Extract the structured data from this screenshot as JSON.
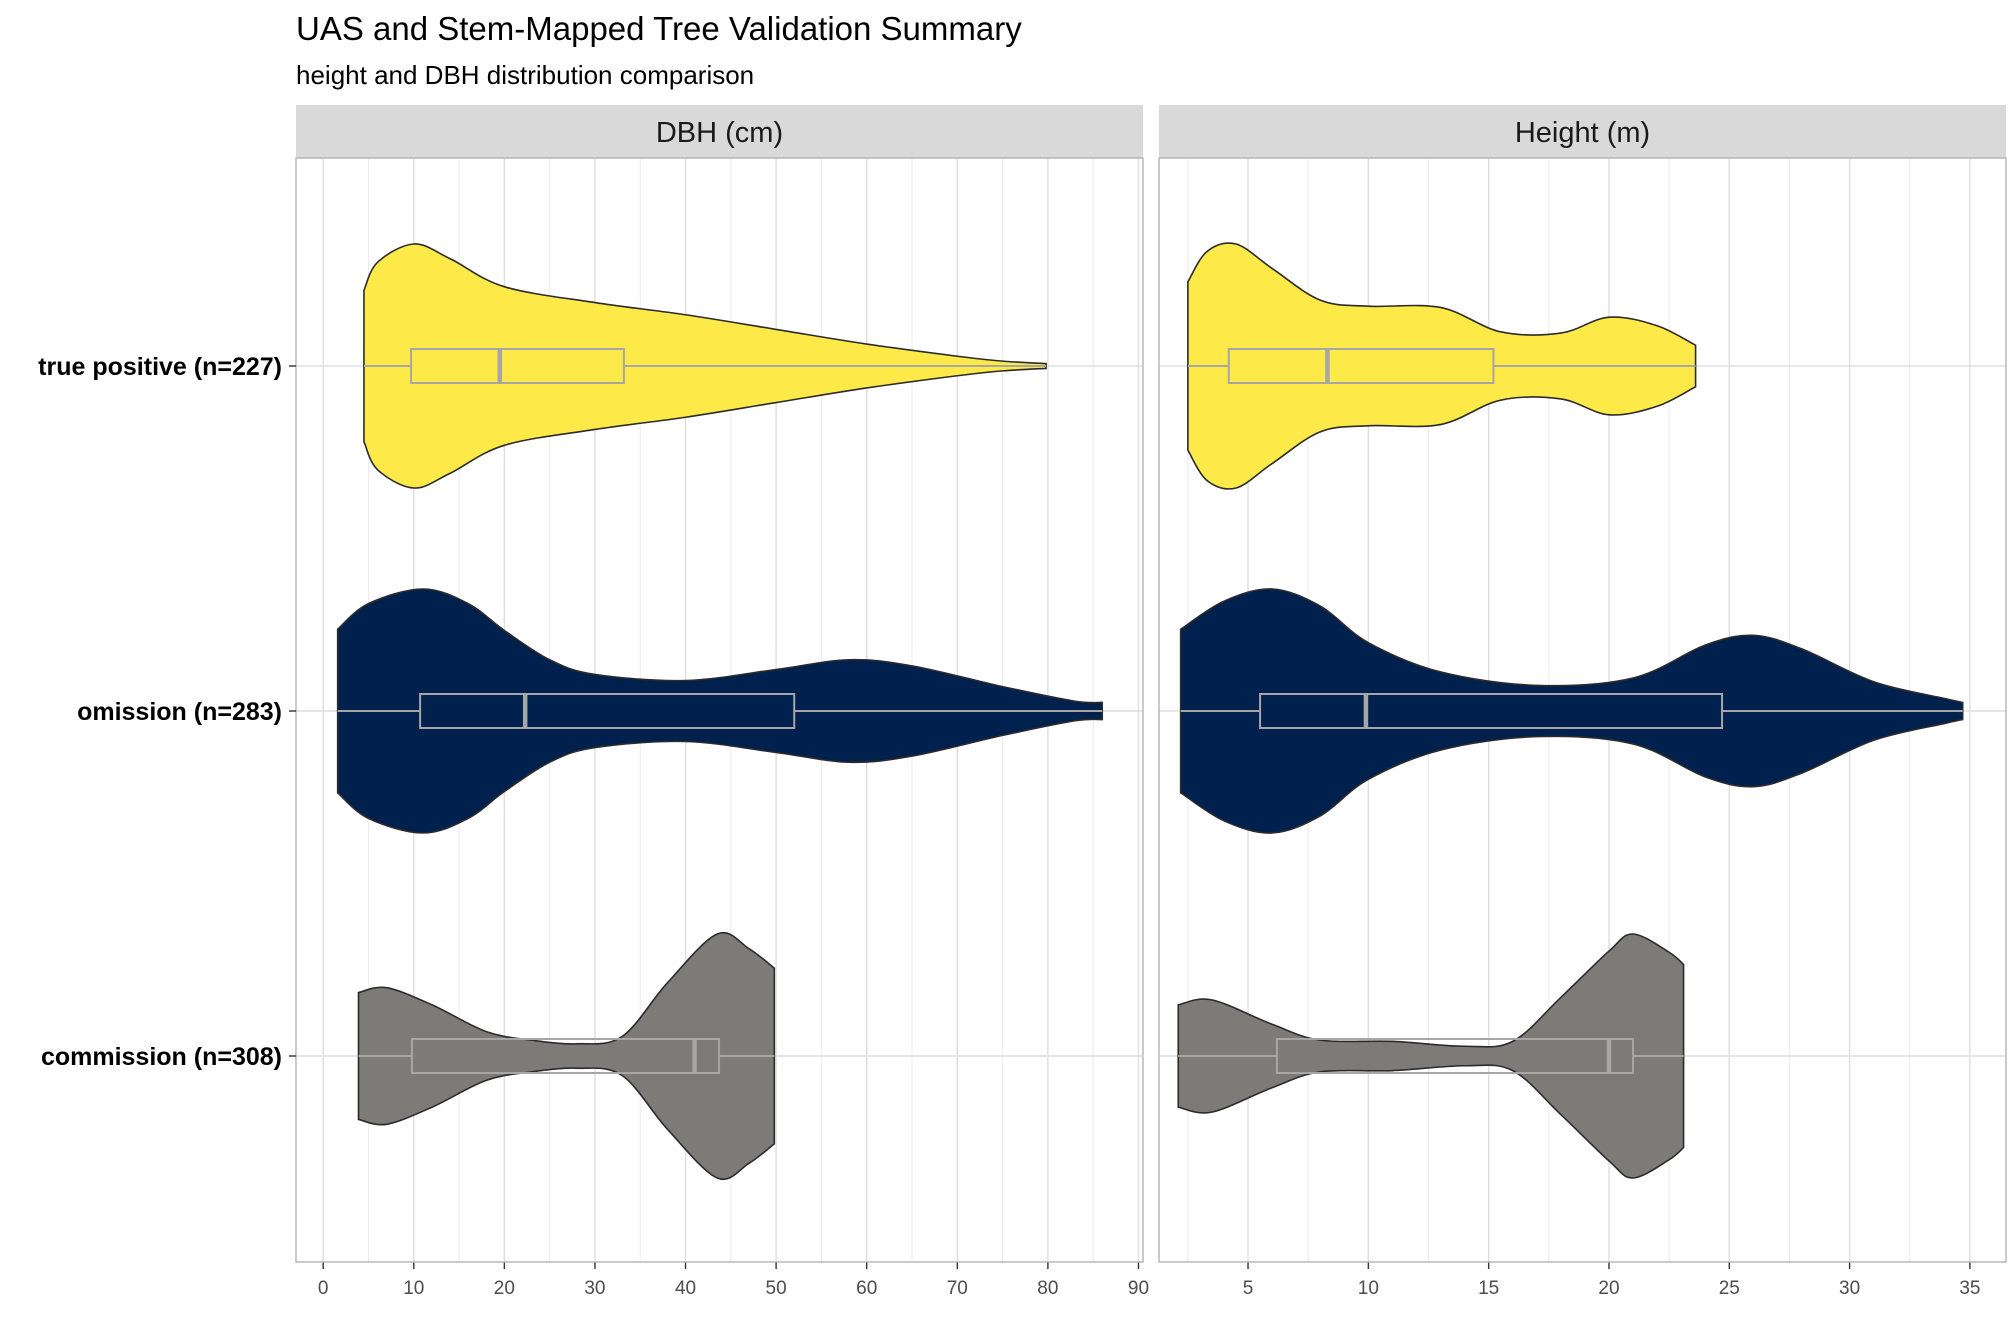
{
  "title": "UAS and Stem-Mapped Tree Validation Summary",
  "subtitle": "height and DBH distribution comparison",
  "chart_data": {
    "type": "violin",
    "orientation": "horizontal",
    "categories": [
      "true positive (n=227)",
      "omission (n=283)",
      "commission (n=308)"
    ],
    "colors": {
      "true positive (n=227)": "#FDE947",
      "omission (n=283)": "#00204D",
      "commission (n=308)": "#7C7B78"
    },
    "grid": true,
    "panels": [
      {
        "strip": "DBH (cm)",
        "xlim": [
          -3,
          90.5
        ],
        "xticks": [
          0,
          10,
          20,
          30,
          40,
          50,
          60,
          70,
          80,
          90
        ],
        "groups": [
          {
            "category": "true positive (n=227)",
            "min": 4.5,
            "q1": 9.7,
            "median": 19.5,
            "q3": 33.2,
            "max": 79.8,
            "violin_min": 4.5,
            "violin_max": 79.8,
            "density_x": [
              4.5,
              6,
              10,
              14,
              20,
              30,
              40,
              50,
              60,
              70,
              75,
              79.8
            ],
            "density": [
              0.62,
              0.85,
              1.0,
              0.88,
              0.65,
              0.52,
              0.42,
              0.3,
              0.18,
              0.08,
              0.04,
              0.02
            ]
          },
          {
            "category": "omission (n=283)",
            "min": 1.6,
            "q1": 10.7,
            "median": 22.3,
            "q3": 52.0,
            "max": 86.0,
            "violin_min": 1.6,
            "violin_max": 86.0,
            "density_x": [
              1.6,
              5,
              11,
              16,
              20,
              25,
              30,
              40,
              50,
              58,
              65,
              75,
              83,
              86
            ],
            "density": [
              0.67,
              0.88,
              1.0,
              0.88,
              0.66,
              0.42,
              0.3,
              0.25,
              0.34,
              0.42,
              0.37,
              0.2,
              0.08,
              0.07
            ]
          },
          {
            "category": "commission (n=308)",
            "min": 3.9,
            "q1": 9.8,
            "median": 41.0,
            "q3": 43.7,
            "max": 49.8,
            "violin_min": 3.9,
            "violin_max": 49.8,
            "density_x": [
              3.9,
              7,
              12,
              18,
              23,
              28,
              33,
              38,
              43.5,
              47,
              49.8
            ],
            "density": [
              0.52,
              0.56,
              0.42,
              0.2,
              0.13,
              0.1,
              0.16,
              0.6,
              1.0,
              0.88,
              0.72
            ]
          }
        ]
      },
      {
        "strip": "Height (m)",
        "xlim": [
          1.3,
          36.5
        ],
        "xticks": [
          5,
          10,
          15,
          20,
          25,
          30,
          35
        ],
        "groups": [
          {
            "category": "true positive (n=227)",
            "min": 2.5,
            "q1": 4.2,
            "median": 8.3,
            "q3": 15.2,
            "max": 23.6,
            "violin_min": 2.5,
            "violin_max": 23.6,
            "density_x": [
              2.5,
              3.3,
              4.5,
              6,
              8,
              10,
              13,
              15.5,
              18,
              20,
              22,
              23.6
            ],
            "density": [
              0.69,
              0.94,
              1.0,
              0.8,
              0.54,
              0.49,
              0.48,
              0.28,
              0.27,
              0.4,
              0.33,
              0.17
            ]
          },
          {
            "category": "omission (n=283)",
            "min": 2.2,
            "q1": 5.5,
            "median": 9.9,
            "q3": 24.7,
            "max": 34.7,
            "violin_min": 2.2,
            "violin_max": 34.7,
            "density_x": [
              2.2,
              4,
              6,
              8,
              10,
              13,
              17,
              21,
              24,
              26,
              28,
              31,
              34,
              34.7
            ],
            "density": [
              0.67,
              0.9,
              1.0,
              0.86,
              0.56,
              0.32,
              0.21,
              0.27,
              0.54,
              0.62,
              0.51,
              0.24,
              0.1,
              0.07
            ]
          },
          {
            "category": "commission (n=308)",
            "min": 2.1,
            "q1": 6.2,
            "median": 20.0,
            "q3": 21.0,
            "max": 23.1,
            "violin_min": 2.1,
            "violin_max": 23.1,
            "density_x": [
              2.1,
              3.5,
              6,
              8,
              11,
              14,
              16,
              18,
              20,
              21,
              22.5,
              23.1
            ],
            "density": [
              0.42,
              0.46,
              0.26,
              0.13,
              0.12,
              0.08,
              0.12,
              0.48,
              0.86,
              1.0,
              0.85,
              0.75
            ]
          }
        ]
      }
    ]
  }
}
